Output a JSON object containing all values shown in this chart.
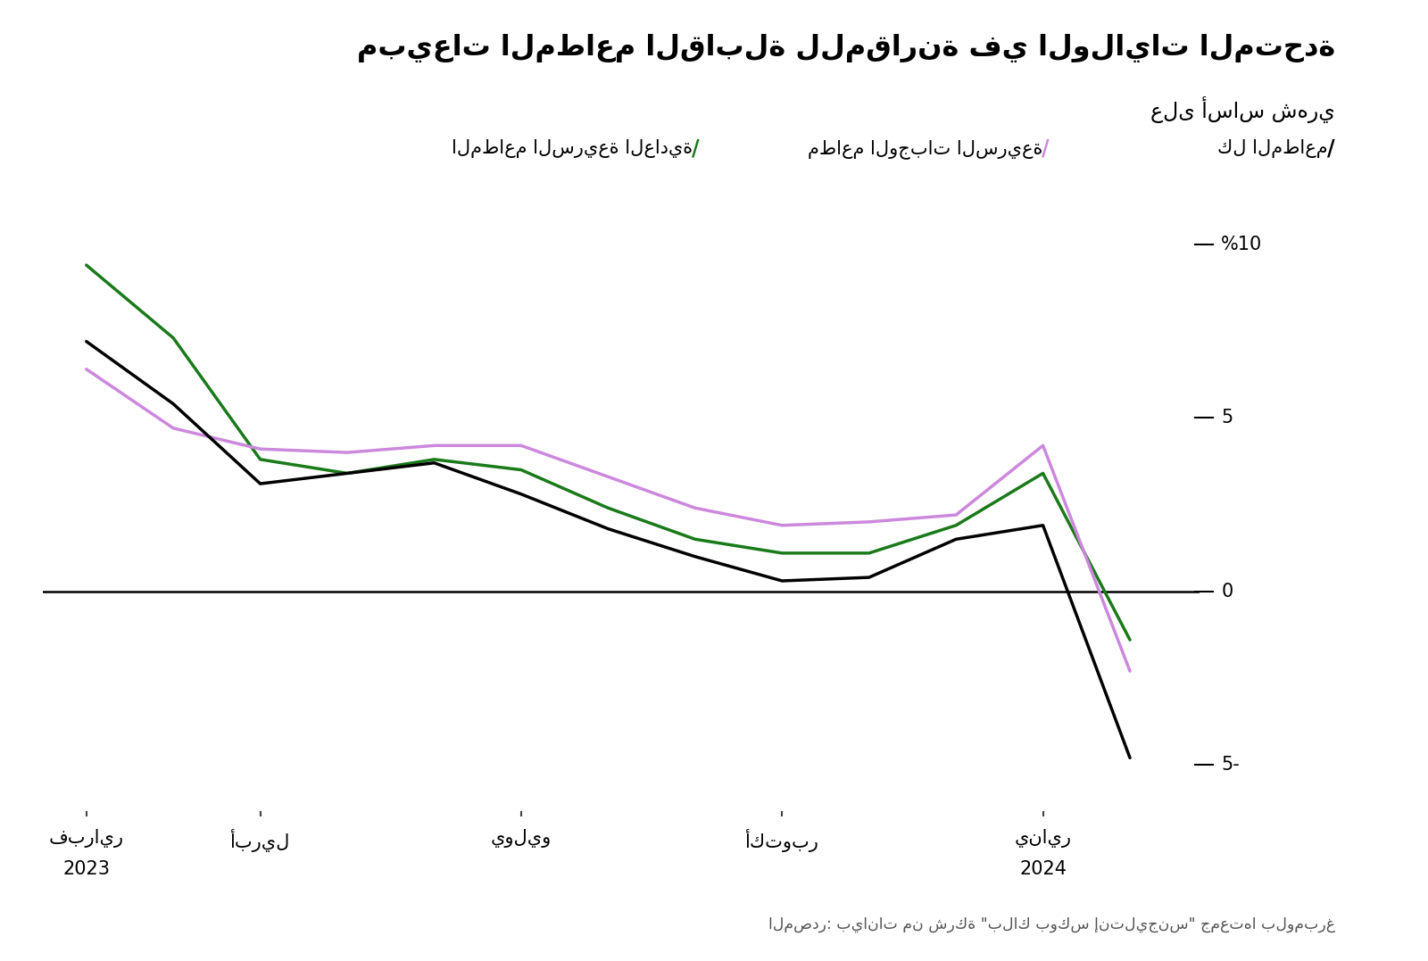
{
  "title": "مبيعات المطاعم القابلة للمقارنة في الولايات المتحدة",
  "subtitle": "على أساس شهري",
  "source": "المصدر: بيانات من شركة \"بلاك بوكس إنتليجنس\" جمعتها بلومبرغ",
  "legend_all": "كل المطاعم",
  "legend_fast": "مطاعم الوجبات السريعة",
  "legend_quick": "المطاعم السريعة العادية",
  "color_all": "#000000",
  "color_fast": "#cc88dd",
  "color_quick": "#1a7a1a",
  "background_color": "#ffffff",
  "ylim": [
    -6.5,
    11.5
  ],
  "yticks": [
    -5,
    0,
    5,
    10
  ],
  "xlim": [
    -0.5,
    12.8
  ],
  "x_month_labels": [
    "فبراير",
    "أبريل",
    "يوليو",
    "أكتوبر",
    "يناير"
  ],
  "x_year_labels": [
    "2023",
    "",
    "",
    "",
    "2024"
  ],
  "x_tick_positions": [
    0,
    2,
    5,
    8,
    11
  ],
  "all_restaurants": [
    7.2,
    5.4,
    3.1,
    3.4,
    3.7,
    2.8,
    1.8,
    1.0,
    0.3,
    0.4,
    1.5,
    1.9,
    -4.8
  ],
  "fast_food": [
    6.4,
    4.7,
    4.1,
    4.0,
    4.2,
    4.2,
    3.3,
    2.4,
    1.9,
    2.0,
    2.2,
    4.2,
    -2.3
  ],
  "quick_service": [
    9.4,
    7.3,
    3.8,
    3.4,
    3.8,
    3.5,
    2.4,
    1.5,
    1.1,
    1.1,
    1.9,
    3.4,
    -1.4
  ],
  "x_values": [
    0,
    1,
    2,
    3,
    4,
    5,
    6,
    7,
    8,
    9,
    10,
    11,
    12
  ]
}
